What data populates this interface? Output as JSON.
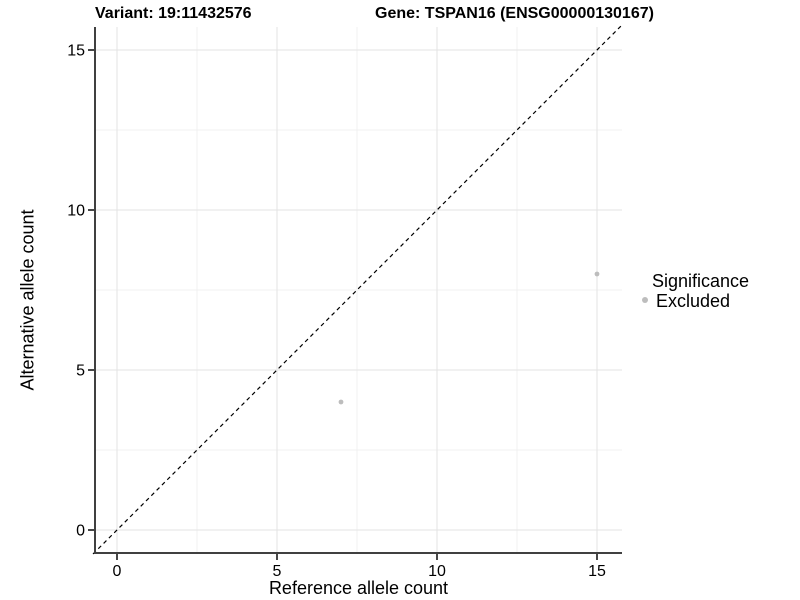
{
  "chart_data": {
    "type": "scatter",
    "title_left": "Variant: 19:11432576",
    "title_right": "Gene: TSPAN16 (ENSG00000130167)",
    "xlabel": "Reference allele count",
    "ylabel": "Alternative allele count",
    "xlim": [
      -0.75,
      15.75
    ],
    "ylim": [
      -0.75,
      15.75
    ],
    "x_ticks": [
      0,
      5,
      10,
      15
    ],
    "y_ticks": [
      0,
      5,
      10,
      15
    ],
    "minor_ticks": [
      2.5,
      7.5,
      12.5
    ],
    "grid": "major and minor gridlines, light gray on white",
    "identity_line": {
      "slope": 1,
      "intercept": 0,
      "style": "dashed",
      "color": "#000000"
    },
    "series": [
      {
        "name": "Excluded",
        "color": "#bdbdbd",
        "points": [
          {
            "x": 7,
            "y": 4
          },
          {
            "x": 15,
            "y": 8
          }
        ]
      }
    ],
    "legend": {
      "title": "Significance",
      "position": "right",
      "items": [
        {
          "label": "Excluded",
          "color": "#bdbdbd"
        }
      ]
    }
  },
  "colors": {
    "point": "#bdbdbd",
    "grid_major": "#e3e3e3",
    "grid_minor": "#f1f1f1",
    "axis_line": "#404040",
    "tick_mark": "#333333",
    "text": "#000000",
    "background": "#ffffff"
  }
}
